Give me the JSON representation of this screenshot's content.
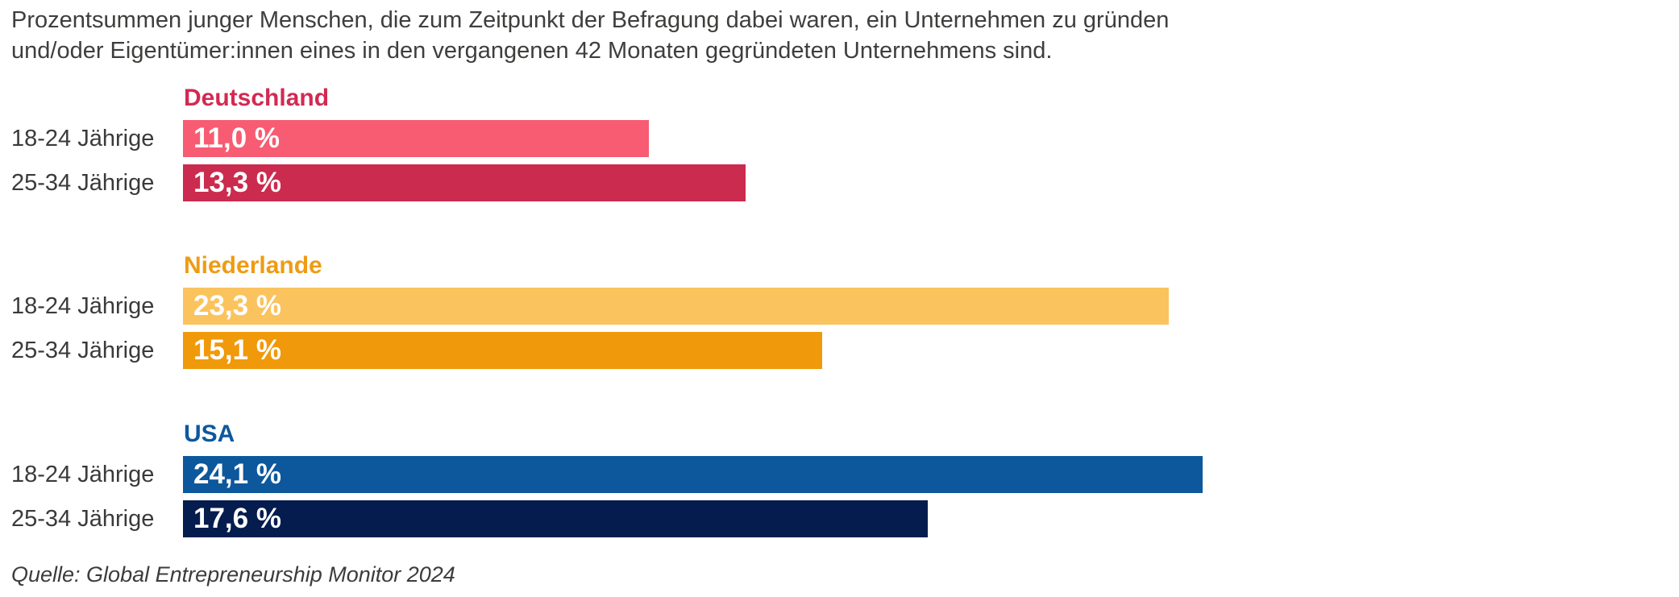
{
  "title": {
    "line1": "Prozentsummen junger Menschen, die zum Zeitpunkt der Befragung dabei waren, ein Unternehmen zu gründen",
    "line2": "und/oder Eigentümer:innen eines in den vergangenen 42 Monaten gegründeten Unternehmens sind."
  },
  "source": "Quelle: Global Entrepreneurship Monitor 2024",
  "chart_data": {
    "type": "bar",
    "orientation": "horizontal",
    "title": "Prozentsummen junger Menschen, die zum Zeitpunkt der Befragung dabei waren, ein Unternehmen zu gründen und/oder Eigentümer:innen eines in den vergangenen 42 Monaten gegründeten Unternehmens sind.",
    "source": "Quelle: Global Entrepreneurship Monitor 2024",
    "categories": [
      "18-24 Jährige",
      "25-34 Jährige"
    ],
    "value_unit": "%",
    "xlim": [
      0,
      35.35
    ],
    "grid": false,
    "legend": false,
    "groups": [
      {
        "name": "Deutschland",
        "heading_color": "#d22a52",
        "bars": [
          {
            "category": "18-24 Jährige",
            "value": 11.0,
            "label": "11,0 %",
            "color": "#f75c72"
          },
          {
            "category": "25-34 Jährige",
            "value": 13.3,
            "label": "13,3 %",
            "color": "#cb2b4e"
          }
        ]
      },
      {
        "name": "Niederlande",
        "heading_color": "#ef9b13",
        "bars": [
          {
            "category": "18-24 Jährige",
            "value": 23.3,
            "label": "23,3 %",
            "color": "#fbc35e"
          },
          {
            "category": "25-34 Jährige",
            "value": 15.1,
            "label": "15,1 %",
            "color": "#f0990b"
          }
        ]
      },
      {
        "name": "USA",
        "heading_color": "#0d589d",
        "bars": [
          {
            "category": "18-24 Jährige",
            "value": 24.1,
            "label": "24,1 %",
            "color": "#0d589d"
          },
          {
            "category": "25-34 Jährige",
            "value": 17.6,
            "label": "17,6 %",
            "color": "#041c4e"
          }
        ]
      }
    ]
  }
}
